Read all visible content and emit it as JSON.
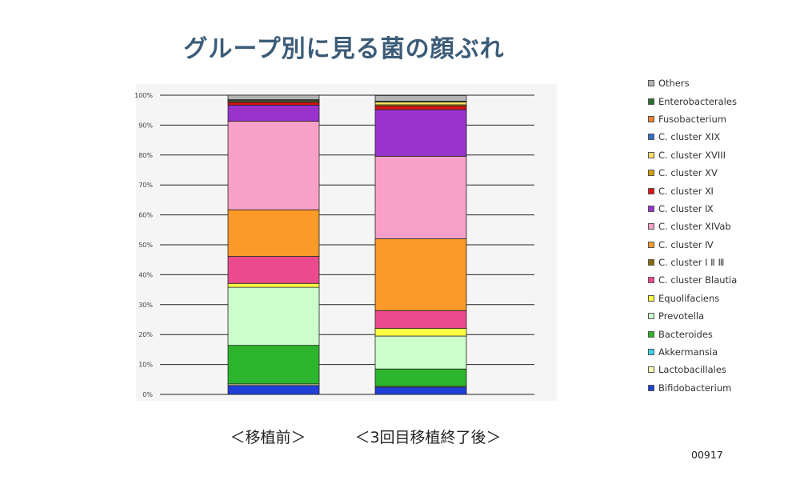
{
  "title": "グループ別に見る菌の顔ぶれ",
  "page_number": "00917",
  "chart_data": {
    "type": "bar",
    "stacked": true,
    "categories": [
      "＜移植前＞",
      "＜3回目移植終了後＞"
    ],
    "ylim": [
      0,
      100
    ],
    "yticks": [
      "0%",
      "10%",
      "20%",
      "30%",
      "40%",
      "50%",
      "60%",
      "70%",
      "80%",
      "90%",
      "100%"
    ],
    "grid": true,
    "legend_position": "right",
    "series": [
      {
        "name": "Bifidobacterium",
        "color": "#1f3fd6",
        "values": [
          3.0,
          2.4
        ]
      },
      {
        "name": "Lactobacillales",
        "color": "#fffbb0",
        "values": [
          0.5,
          0.3
        ]
      },
      {
        "name": "Akkermansia",
        "color": "#38d0e8",
        "values": [
          0,
          0
        ]
      },
      {
        "name": "Bacteroides",
        "color": "#2db52d",
        "values": [
          12.9,
          5.8
        ]
      },
      {
        "name": "Prevotella",
        "color": "#ccffcc",
        "values": [
          19.4,
          11.0
        ]
      },
      {
        "name": "Equolifaciens",
        "color": "#ffff44",
        "values": [
          1.3,
          2.6
        ]
      },
      {
        "name": "C. cluster Blautia",
        "color": "#ec4a8e",
        "values": [
          9.0,
          5.9
        ]
      },
      {
        "name": "C. cluster Ⅰ Ⅱ Ⅲ",
        "color": "#8a6d00",
        "values": [
          0,
          0
        ]
      },
      {
        "name": "C. cluster Ⅳ",
        "color": "#fb9a28",
        "values": [
          15.6,
          24.0
        ]
      },
      {
        "name": "C. cluster XIVab",
        "color": "#f9a0c8",
        "values": [
          29.6,
          27.6
        ]
      },
      {
        "name": "C. cluster Ⅸ",
        "color": "#9933cc",
        "values": [
          5.4,
          15.6
        ]
      },
      {
        "name": "C. cluster Ⅺ",
        "color": "#dd1111",
        "values": [
          0.9,
          1.2
        ]
      },
      {
        "name": "C. cluster XV",
        "color": "#d4a000",
        "values": [
          0.3,
          0.4
        ]
      },
      {
        "name": "C. cluster XVIII",
        "color": "#ffe066",
        "values": [
          0.3,
          0.9
        ]
      },
      {
        "name": "C. cluster XIX",
        "color": "#3070c8",
        "values": [
          0,
          0
        ]
      },
      {
        "name": "Fusobacterium",
        "color": "#f08030",
        "values": [
          0,
          0
        ]
      },
      {
        "name": "Enterobacterales",
        "color": "#2e6e2e",
        "values": [
          0.3,
          0.3
        ]
      },
      {
        "name": "Others",
        "color": "#b4b4b4",
        "values": [
          1.5,
          1.9
        ]
      }
    ]
  }
}
